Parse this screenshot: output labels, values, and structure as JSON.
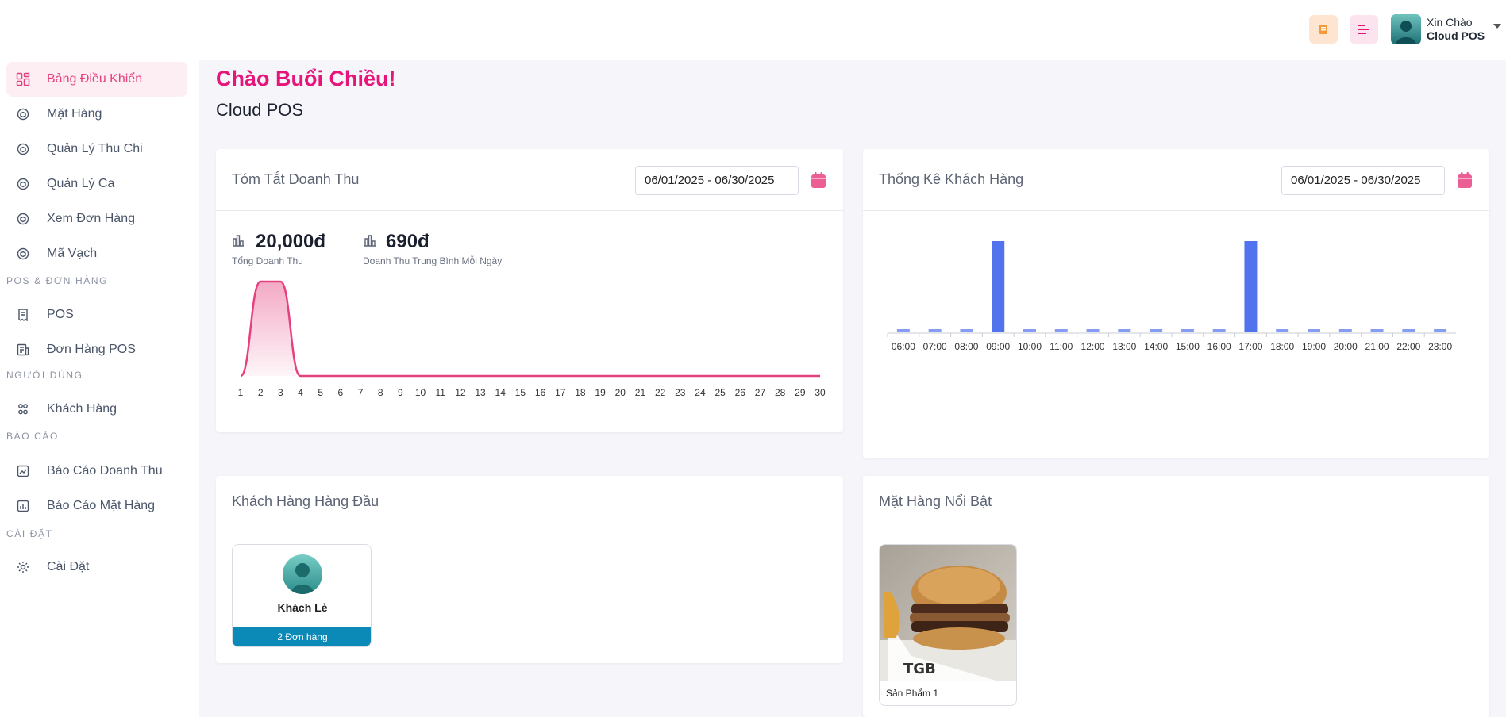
{
  "header": {
    "greeting": "Xin Chào",
    "user_name": "Cloud POS",
    "icons": [
      "receipt-icon",
      "menu-lines-icon",
      "user-avatar",
      "chevron-down-icon"
    ],
    "colors": {
      "orange_btn_bg": "#fde5d2",
      "pink_btn_bg": "#fce4ee",
      "accent": "#e6417f"
    }
  },
  "sidebar": {
    "items": [
      {
        "label": "Bảng Điều Khiển",
        "icon": "dashboard-icon",
        "active": true
      },
      {
        "label": "Mặt Hàng",
        "icon": "box-icon"
      },
      {
        "label": "Quản Lý Thu Chi",
        "icon": "box-icon"
      },
      {
        "label": "Quản Lý Ca",
        "icon": "box-icon"
      },
      {
        "label": "Xem Đơn Hàng",
        "icon": "box-icon"
      },
      {
        "label": "Mã Vạch",
        "icon": "box-icon"
      }
    ],
    "sections": [
      {
        "title": "POS & ĐƠN HÀNG",
        "items": [
          {
            "label": "POS",
            "icon": "receipt-icon"
          },
          {
            "label": "Đơn Hàng POS",
            "icon": "document-icon"
          }
        ]
      },
      {
        "title": "NGƯỜI DÙNG",
        "items": [
          {
            "label": "Khách Hàng",
            "icon": "users-icon"
          }
        ]
      },
      {
        "title": "BÁO CÁO",
        "items": [
          {
            "label": "Báo Cáo Doanh Thu",
            "icon": "chart-icon"
          },
          {
            "label": "Báo Cáo Mặt Hàng",
            "icon": "chart-icon"
          }
        ]
      },
      {
        "title": "CÀI ĐẶT",
        "items": [
          {
            "label": "Cài Đặt",
            "icon": "gear-icon"
          }
        ]
      }
    ]
  },
  "main": {
    "greeting": "Chào Buổi Chiều!",
    "subtitle": "Cloud POS"
  },
  "revenue_card": {
    "title": "Tóm Tắt Doanh Thu",
    "date_range": "06/01/2025   -   06/30/2025",
    "total_value": "20,000đ",
    "total_label": "Tổng Doanh Thu",
    "avg_value": "690đ",
    "avg_label": "Doanh Thu Trung Bình Mỗi Ngày"
  },
  "customer_stats_card": {
    "title": "Thống Kê Khách Hàng",
    "date_range": "06/01/2025   -   06/30/2025"
  },
  "top_customers_card": {
    "title": "Khách Hàng Hàng Đầu",
    "customers": [
      {
        "name": "Khách Lẻ",
        "orders": "2 Đơn hàng"
      }
    ]
  },
  "featured_products_card": {
    "title": "Mặt Hàng Nổi Bật",
    "products": [
      {
        "name": "Sản Phẩm 1"
      }
    ]
  },
  "chart_data": [
    {
      "type": "area",
      "x": [
        1,
        2,
        3,
        4,
        5,
        6,
        7,
        8,
        9,
        10,
        11,
        12,
        13,
        14,
        15,
        16,
        17,
        18,
        19,
        20,
        21,
        22,
        23,
        24,
        25,
        26,
        27,
        28,
        29,
        30
      ],
      "series": [
        {
          "values": [
            0,
            10000,
            10000,
            0,
            0,
            0,
            0,
            0,
            0,
            0,
            0,
            0,
            0,
            0,
            0,
            0,
            0,
            0,
            0,
            0,
            0,
            0,
            0,
            0,
            0,
            0,
            0,
            0,
            0,
            0
          ]
        }
      ],
      "ylim": [
        0,
        10000
      ],
      "grid": false,
      "color": "#e6417f"
    },
    {
      "type": "bar",
      "categories": [
        "06:00",
        "07:00",
        "08:00",
        "09:00",
        "10:00",
        "11:00",
        "12:00",
        "13:00",
        "14:00",
        "15:00",
        "16:00",
        "17:00",
        "18:00",
        "19:00",
        "20:00",
        "21:00",
        "22:00",
        "23:00"
      ],
      "series": [
        {
          "values": [
            0,
            0,
            0,
            1,
            0,
            0,
            0,
            0,
            0,
            0,
            0,
            1,
            0,
            0,
            0,
            0,
            0,
            0
          ]
        }
      ],
      "ylim": [
        0,
        1
      ],
      "grid": false,
      "color": "#5273ee"
    }
  ]
}
